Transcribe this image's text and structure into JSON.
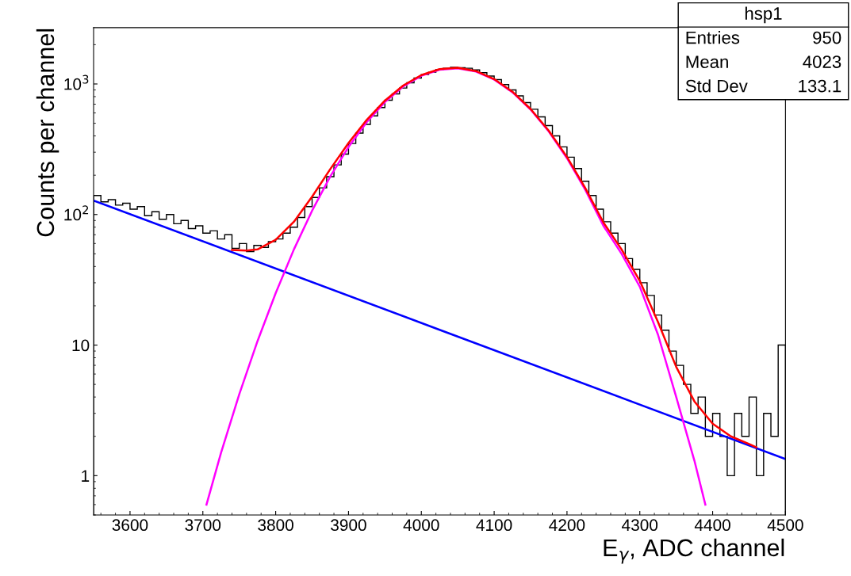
{
  "chart_data": {
    "type": "histogram",
    "xlabel": "E$_{γ}$, ADC channel",
    "ylabel": "Counts per channel",
    "log": "y",
    "grid": false,
    "xlim": [
      3550,
      4500
    ],
    "xticks": [
      3600,
      3700,
      3800,
      3900,
      4000,
      4100,
      4200,
      4300,
      4400,
      4500
    ],
    "ylim": [
      0.5,
      2700
    ],
    "yticks": [
      1,
      10,
      {
        "value": 100,
        "label": "10$^{2}$"
      },
      {
        "value": 1000,
        "label": "10$^{3}$"
      }
    ],
    "color": "#000000",
    "bins": [
      3550,
      3560,
      3570,
      3580,
      3590,
      3600,
      3610,
      3620,
      3630,
      3640,
      3650,
      3660,
      3670,
      3680,
      3690,
      3700,
      3710,
      3720,
      3730,
      3740,
      3750,
      3760,
      3770,
      3780,
      3790,
      3800,
      3810,
      3820,
      3830,
      3840,
      3850,
      3860,
      3870,
      3880,
      3890,
      3900,
      3910,
      3920,
      3930,
      3940,
      3950,
      3960,
      3970,
      3980,
      3990,
      4000,
      4010,
      4020,
      4030,
      4040,
      4050,
      4060,
      4070,
      4080,
      4090,
      4100,
      4110,
      4120,
      4130,
      4140,
      4150,
      4160,
      4170,
      4180,
      4190,
      4200,
      4210,
      4220,
      4230,
      4240,
      4250,
      4260,
      4270,
      4280,
      4290,
      4300,
      4310,
      4320,
      4330,
      4340,
      4350,
      4360,
      4370,
      4380,
      4390,
      4400,
      4410,
      4420,
      4430,
      4440,
      4450,
      4460,
      4470,
      4480,
      4490,
      4500
    ],
    "values": [
      140,
      125,
      130,
      118,
      122,
      110,
      115,
      98,
      105,
      92,
      100,
      85,
      90,
      78,
      82,
      72,
      75,
      65,
      70,
      55,
      60,
      52,
      58,
      56,
      62,
      65,
      72,
      80,
      95,
      115,
      135,
      160,
      195,
      240,
      290,
      350,
      420,
      490,
      570,
      660,
      750,
      840,
      930,
      1020,
      1110,
      1180,
      1230,
      1290,
      1320,
      1340,
      1330,
      1320,
      1280,
      1220,
      1150,
      1080,
      990,
      900,
      810,
      720,
      640,
      560,
      480,
      400,
      330,
      275,
      225,
      180,
      140,
      110,
      88,
      72,
      60,
      46,
      38,
      30,
      24,
      17,
      13,
      9,
      7,
      5,
      3,
      4,
      2,
      3,
      2,
      1,
      3,
      2,
      4,
      1,
      3,
      2,
      10
    ],
    "series": [
      {
        "type": "line",
        "color": "#0000ff",
        "x": [
          3550,
          4025,
          4500
        ],
        "values": [
          128,
          13.1,
          1.34
        ]
      },
      {
        "type": "line",
        "color": "#ff00ff",
        "x": [
          3705,
          3725,
          3750,
          3775,
          3800,
          3825,
          3850,
          3875,
          3900,
          3925,
          3950,
          3975,
          4000,
          4025,
          4050,
          4075,
          4100,
          4125,
          4150,
          4175,
          4200,
          4225,
          4250,
          4275,
          4300,
          4325,
          4350,
          4375,
          4390
        ],
        "values": [
          0.6,
          1.5,
          4.2,
          10.7,
          25,
          54,
          107,
          196,
          329,
          510,
          727,
          955,
          1155,
          1286,
          1318,
          1244,
          1081,
          865,
          637,
          432,
          270,
          155,
          82,
          50,
          28,
          12,
          4.0,
          1.3,
          0.6
        ]
      },
      {
        "type": "line",
        "color": "#ff0000",
        "x": [
          3740,
          3760,
          3775,
          3800,
          3825,
          3850,
          3875,
          3900,
          3925,
          3950,
          3975,
          4000,
          4025,
          4050,
          4075,
          4100,
          4125,
          4150,
          4175,
          4200,
          4225,
          4250,
          4275,
          4300,
          4325,
          4350,
          4375,
          4400,
          4425,
          4450,
          4460
        ],
        "values": [
          53.5,
          53,
          54,
          64,
          88,
          137,
          223,
          353,
          531,
          746,
          972,
          1170,
          1299,
          1330,
          1255,
          1090,
          873,
          644,
          438,
          276,
          160,
          87,
          54,
          31,
          15,
          6.8,
          3.7,
          2.5,
          2.0,
          1.75,
          1.65
        ]
      }
    ],
    "annotations": [
      "hsp1",
      "Entries",
      "950",
      "Mean",
      "4023",
      "Std Dev",
      "133.1"
    ]
  }
}
